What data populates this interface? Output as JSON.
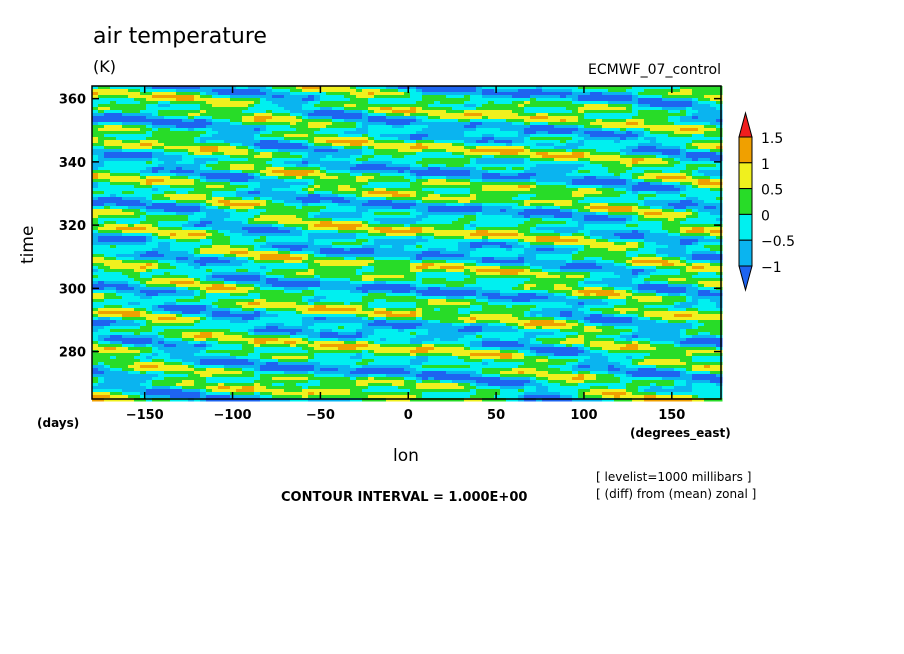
{
  "chart_data": {
    "type": "heatmap",
    "title": "air temperature",
    "units": "(K)",
    "dataset": "ECMWF_07_control",
    "xlabel": "lon",
    "ylabel": "time",
    "x_units": "(degrees_east)",
    "y_units": "(days)",
    "x_range": [
      -180,
      178
    ],
    "y_range": [
      265,
      364
    ],
    "x_ticks": [
      -150,
      -100,
      -50,
      0,
      50,
      100,
      150
    ],
    "x_tick_labels": [
      "−150",
      "−100",
      "−50",
      "0",
      "50",
      "100",
      "150"
    ],
    "y_ticks": [
      280,
      300,
      320,
      340,
      360
    ],
    "y_tick_labels": [
      "280",
      "300",
      "320",
      "340",
      "360"
    ],
    "colorbar": {
      "levels": [
        -1,
        -0.5,
        0,
        0.5,
        1,
        1.5
      ],
      "level_labels": [
        "−1",
        "−0.5",
        "0",
        "0.5",
        "1",
        "1.5"
      ],
      "colors": [
        "#1e64f0",
        "#0ab4f0",
        "#00f0f0",
        "#28dc28",
        "#f0f01e",
        "#f0a000",
        "#f01e1e"
      ]
    },
    "contour_interval": "CONTOUR INTERVAL = 1.000E+00",
    "annotations": [
      "[ levelist=1000 millibars ]",
      "[ (diff) from (mean) zonal ]"
    ]
  }
}
